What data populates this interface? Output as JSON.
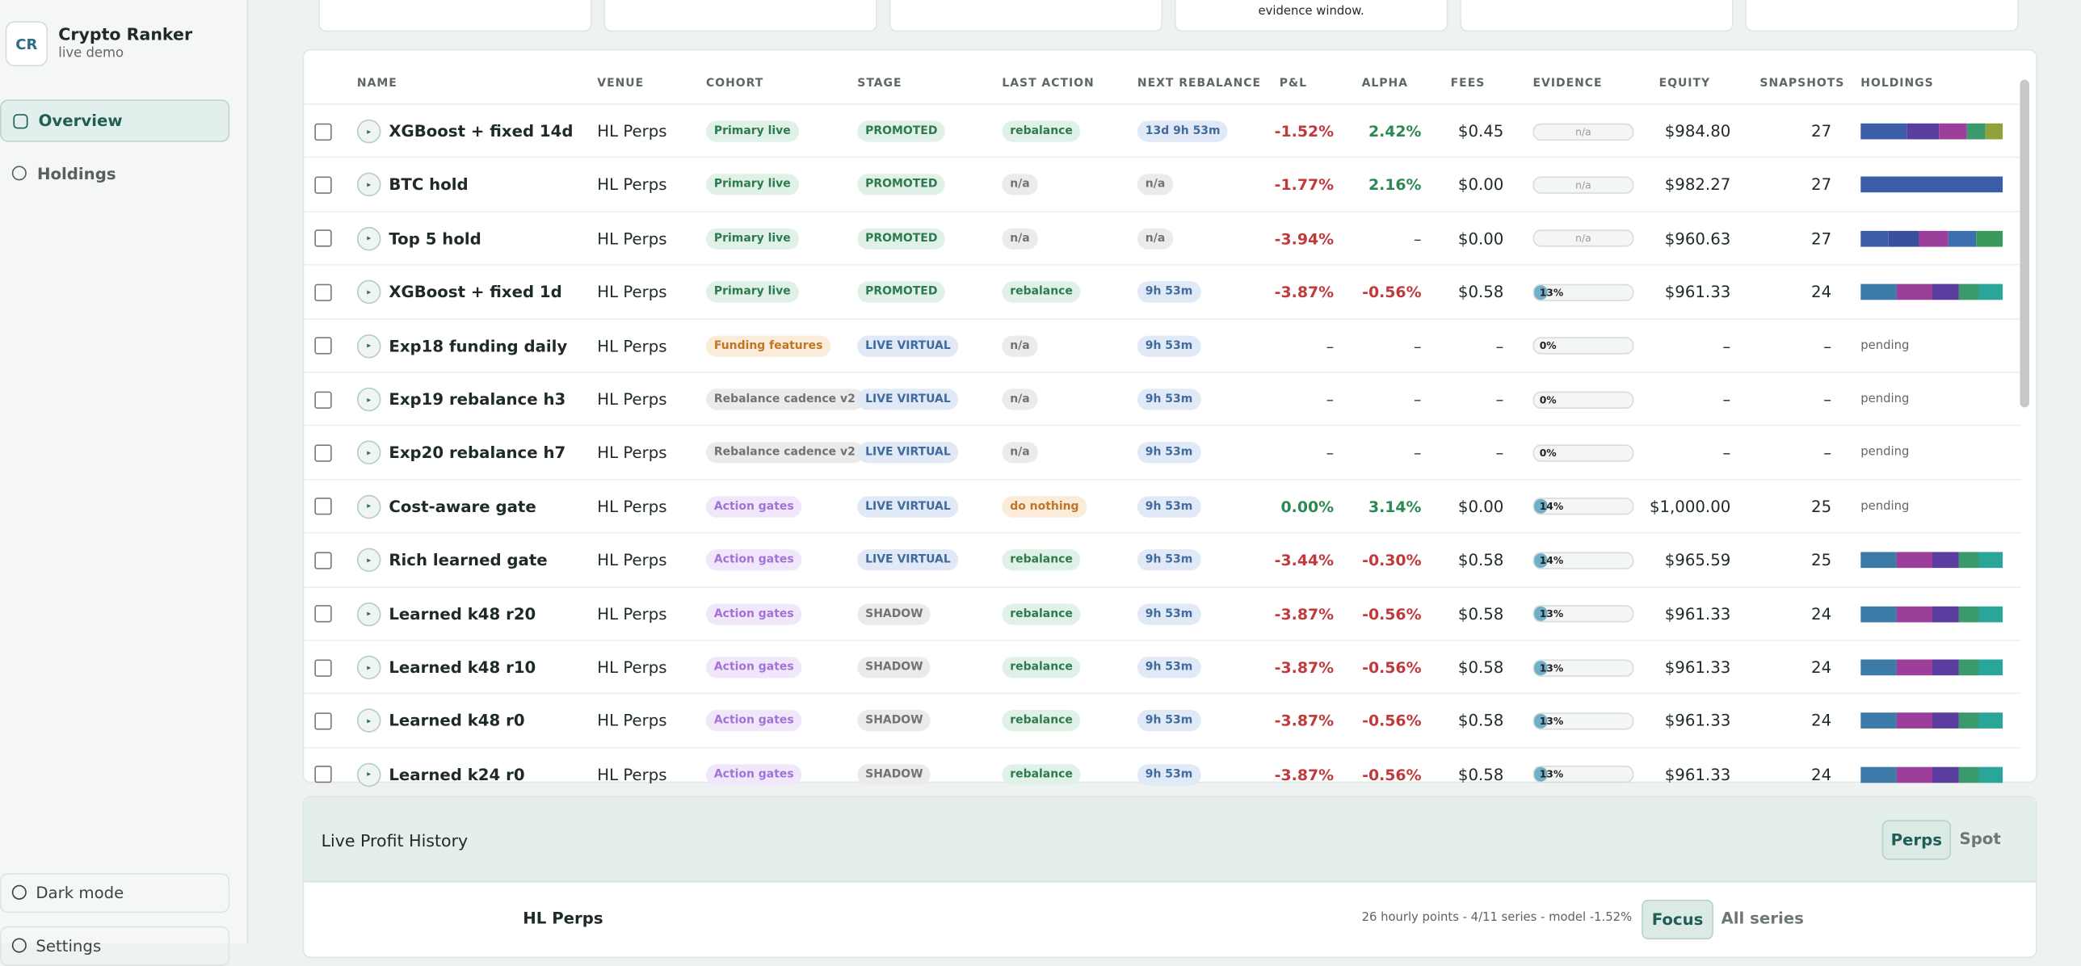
{
  "sidebar": {
    "logo": "CR",
    "app_name": "Crypto Ranker",
    "subtitle": "live demo",
    "nav": [
      "Overview",
      "Holdings"
    ],
    "bottom": [
      "Dark mode",
      "Settings"
    ]
  },
  "cards": {
    "texts": [
      "",
      "",
      "",
      "evidence window.",
      "",
      ""
    ]
  },
  "table": {
    "columns": [
      "NAME",
      "VENUE",
      "COHORT",
      "STAGE",
      "LAST ACTION",
      "NEXT REBALANCE",
      "P&L",
      "ALPHA",
      "FEES",
      "EVIDENCE",
      "EQUITY",
      "SNAPSHOTS",
      "HOLDINGS"
    ],
    "rows": [
      {
        "name": "XGBoost + fixed 14d",
        "venue": "HL Perps",
        "cohort": {
          "text": "Primary live",
          "tone": "green"
        },
        "stage": {
          "text": "PROMOTED",
          "tone": "green"
        },
        "last": {
          "text": "rebalance",
          "tone": "green"
        },
        "next": {
          "text": "13d 9h 53m",
          "tone": "blue"
        },
        "pnl": "-1.52%",
        "alpha": "2.42%",
        "fees": "$0.45",
        "evidence": "n/a",
        "equity": "$984.80",
        "snapshots": "27",
        "holdings": [
          {
            "color": "#3b5ea6",
            "share": 35
          },
          {
            "color": "#5a3d9e",
            "share": 24
          },
          {
            "color": "#9b3f9a",
            "share": 21
          },
          {
            "color": "#3b9a6b",
            "share": 14
          },
          {
            "color": "#8fa33a",
            "share": 13
          }
        ]
      },
      {
        "name": "BTC hold",
        "venue": "HL Perps",
        "cohort": {
          "text": "Primary live",
          "tone": "green"
        },
        "stage": {
          "text": "PROMOTED",
          "tone": "green"
        },
        "last": {
          "text": "n/a",
          "tone": "gray"
        },
        "next": {
          "text": "n/a",
          "tone": "gray"
        },
        "pnl": "-1.77%",
        "alpha": "2.16%",
        "fees": "$0.00",
        "evidence": "n/a",
        "equity": "$982.27",
        "snapshots": "27",
        "holdings": [
          {
            "color": "#3b5ea6",
            "share": 107
          }
        ]
      },
      {
        "name": "Top 5 hold",
        "venue": "HL Perps",
        "cohort": {
          "text": "Primary live",
          "tone": "green"
        },
        "stage": {
          "text": "PROMOTED",
          "tone": "green"
        },
        "last": {
          "text": "n/a",
          "tone": "gray"
        },
        "next": {
          "text": "n/a",
          "tone": "gray"
        },
        "pnl": "-3.94%",
        "alpha": "–",
        "fees": "$0.00",
        "evidence": "n/a",
        "equity": "$960.63",
        "snapshots": "27",
        "holdings": [
          {
            "color": "#3b5ea6",
            "share": 21
          },
          {
            "color": "#3a4f9e",
            "share": 23
          },
          {
            "color": "#9b3f9a",
            "share": 22
          },
          {
            "color": "#3b6fb0",
            "share": 21
          },
          {
            "color": "#3b9a5b",
            "share": 20
          }
        ]
      },
      {
        "name": "XGBoost + fixed 1d",
        "venue": "HL Perps",
        "cohort": {
          "text": "Primary live",
          "tone": "green"
        },
        "stage": {
          "text": "PROMOTED",
          "tone": "green"
        },
        "last": {
          "text": "rebalance",
          "tone": "green"
        },
        "next": {
          "text": "9h 53m",
          "tone": "blue"
        },
        "pnl": "-3.87%",
        "alpha": "-0.56%",
        "fees": "$0.58",
        "evidence": "13%",
        "equity": "$961.33",
        "snapshots": "24",
        "holdings": [
          {
            "color": "#3c7aa8",
            "share": 27
          },
          {
            "color": "#9b3f9a",
            "share": 27
          },
          {
            "color": "#5a3d9e",
            "share": 20
          },
          {
            "color": "#3b9a6b",
            "share": 15
          },
          {
            "color": "#2aa59a",
            "share": 18
          }
        ]
      },
      {
        "name": "Exp18 funding daily",
        "venue": "HL Perps",
        "cohort": {
          "text": "Funding features",
          "tone": "orange"
        },
        "stage": {
          "text": "LIVE VIRTUAL",
          "tone": "blue"
        },
        "last": {
          "text": "n/a",
          "tone": "gray"
        },
        "next": {
          "text": "9h 53m",
          "tone": "blue"
        },
        "pnl": "–",
        "alpha": "–",
        "fees": "–",
        "evidence": "0%",
        "equity": "–",
        "snapshots": "–",
        "holdings": "pending"
      },
      {
        "name": "Exp19 rebalance h3",
        "venue": "HL Perps",
        "cohort": {
          "text": "Rebalance cadence v2",
          "tone": "gray"
        },
        "stage": {
          "text": "LIVE VIRTUAL",
          "tone": "blue"
        },
        "last": {
          "text": "n/a",
          "tone": "gray"
        },
        "next": {
          "text": "9h 53m",
          "tone": "blue"
        },
        "pnl": "–",
        "alpha": "–",
        "fees": "–",
        "evidence": "0%",
        "equity": "–",
        "snapshots": "–",
        "holdings": "pending"
      },
      {
        "name": "Exp20 rebalance h7",
        "venue": "HL Perps",
        "cohort": {
          "text": "Rebalance cadence v2",
          "tone": "gray"
        },
        "stage": {
          "text": "LIVE VIRTUAL",
          "tone": "blue"
        },
        "last": {
          "text": "n/a",
          "tone": "gray"
        },
        "next": {
          "text": "9h 53m",
          "tone": "blue"
        },
        "pnl": "–",
        "alpha": "–",
        "fees": "–",
        "evidence": "0%",
        "equity": "–",
        "snapshots": "–",
        "holdings": "pending"
      },
      {
        "name": "Cost-aware gate",
        "venue": "HL Perps",
        "cohort": {
          "text": "Action gates",
          "tone": "purple"
        },
        "stage": {
          "text": "LIVE VIRTUAL",
          "tone": "blue"
        },
        "last": {
          "text": "do nothing",
          "tone": "orange"
        },
        "next": {
          "text": "9h 53m",
          "tone": "blue"
        },
        "pnl": "0.00%",
        "alpha": "3.14%",
        "fees": "$0.00",
        "evidence": "14%",
        "equity": "$1,000.00",
        "snapshots": "25",
        "holdings": "pending"
      },
      {
        "name": "Rich learned gate",
        "venue": "HL Perps",
        "cohort": {
          "text": "Action gates",
          "tone": "purple"
        },
        "stage": {
          "text": "LIVE VIRTUAL",
          "tone": "blue"
        },
        "last": {
          "text": "rebalance",
          "tone": "green"
        },
        "next": {
          "text": "9h 53m",
          "tone": "blue"
        },
        "pnl": "-3.44%",
        "alpha": "-0.30%",
        "fees": "$0.58",
        "evidence": "14%",
        "equity": "$965.59",
        "snapshots": "25",
        "holdings": [
          {
            "color": "#3c7aa8",
            "share": 27
          },
          {
            "color": "#9b3f9a",
            "share": 27
          },
          {
            "color": "#5a3d9e",
            "share": 20
          },
          {
            "color": "#3b9a6b",
            "share": 15
          },
          {
            "color": "#2aa59a",
            "share": 18
          }
        ]
      },
      {
        "name": "Learned k48 r20",
        "venue": "HL Perps",
        "cohort": {
          "text": "Action gates",
          "tone": "purple"
        },
        "stage": {
          "text": "SHADOW",
          "tone": "gray"
        },
        "last": {
          "text": "rebalance",
          "tone": "green"
        },
        "next": {
          "text": "9h 53m",
          "tone": "blue"
        },
        "pnl": "-3.87%",
        "alpha": "-0.56%",
        "fees": "$0.58",
        "evidence": "13%",
        "equity": "$961.33",
        "snapshots": "24",
        "holdings": [
          {
            "color": "#3c7aa8",
            "share": 27
          },
          {
            "color": "#9b3f9a",
            "share": 27
          },
          {
            "color": "#5a3d9e",
            "share": 20
          },
          {
            "color": "#3b9a6b",
            "share": 15
          },
          {
            "color": "#2aa59a",
            "share": 18
          }
        ]
      },
      {
        "name": "Learned k48 r10",
        "venue": "HL Perps",
        "cohort": {
          "text": "Action gates",
          "tone": "purple"
        },
        "stage": {
          "text": "SHADOW",
          "tone": "gray"
        },
        "last": {
          "text": "rebalance",
          "tone": "green"
        },
        "next": {
          "text": "9h 53m",
          "tone": "blue"
        },
        "pnl": "-3.87%",
        "alpha": "-0.56%",
        "fees": "$0.58",
        "evidence": "13%",
        "equity": "$961.33",
        "snapshots": "24",
        "holdings": [
          {
            "color": "#3c7aa8",
            "share": 27
          },
          {
            "color": "#9b3f9a",
            "share": 27
          },
          {
            "color": "#5a3d9e",
            "share": 20
          },
          {
            "color": "#3b9a6b",
            "share": 15
          },
          {
            "color": "#2aa59a",
            "share": 18
          }
        ]
      },
      {
        "name": "Learned k48 r0",
        "venue": "HL Perps",
        "cohort": {
          "text": "Action gates",
          "tone": "purple"
        },
        "stage": {
          "text": "SHADOW",
          "tone": "gray"
        },
        "last": {
          "text": "rebalance",
          "tone": "green"
        },
        "next": {
          "text": "9h 53m",
          "tone": "blue"
        },
        "pnl": "-3.87%",
        "alpha": "-0.56%",
        "fees": "$0.58",
        "evidence": "13%",
        "equity": "$961.33",
        "snapshots": "24",
        "holdings": [
          {
            "color": "#3c7aa8",
            "share": 27
          },
          {
            "color": "#9b3f9a",
            "share": 27
          },
          {
            "color": "#5a3d9e",
            "share": 20
          },
          {
            "color": "#3b9a6b",
            "share": 15
          },
          {
            "color": "#2aa59a",
            "share": 18
          }
        ]
      },
      {
        "name": "Learned k24 r0",
        "venue": "HL Perps",
        "cohort": {
          "text": "Action gates",
          "tone": "purple"
        },
        "stage": {
          "text": "SHADOW",
          "tone": "gray"
        },
        "last": {
          "text": "rebalance",
          "tone": "green"
        },
        "next": {
          "text": "9h 53m",
          "tone": "blue"
        },
        "pnl": "-3.87%",
        "alpha": "-0.56%",
        "fees": "$0.58",
        "evidence": "13%",
        "equity": "$961.33",
        "snapshots": "24",
        "holdings": [
          {
            "color": "#3c7aa8",
            "share": 27
          },
          {
            "color": "#9b3f9a",
            "share": 27
          },
          {
            "color": "#5a3d9e",
            "share": 20
          },
          {
            "color": "#3b9a6b",
            "share": 15
          },
          {
            "color": "#2aa59a",
            "share": 18
          }
        ]
      }
    ]
  },
  "history": {
    "title": "Live Profit History",
    "venue_toggle": [
      "Perps",
      "Spot"
    ],
    "chart_title": "HL Perps",
    "summary": "26 hourly points - 4/11 series - model -1.52%",
    "mode_toggle": [
      "Focus",
      "All series"
    ]
  }
}
